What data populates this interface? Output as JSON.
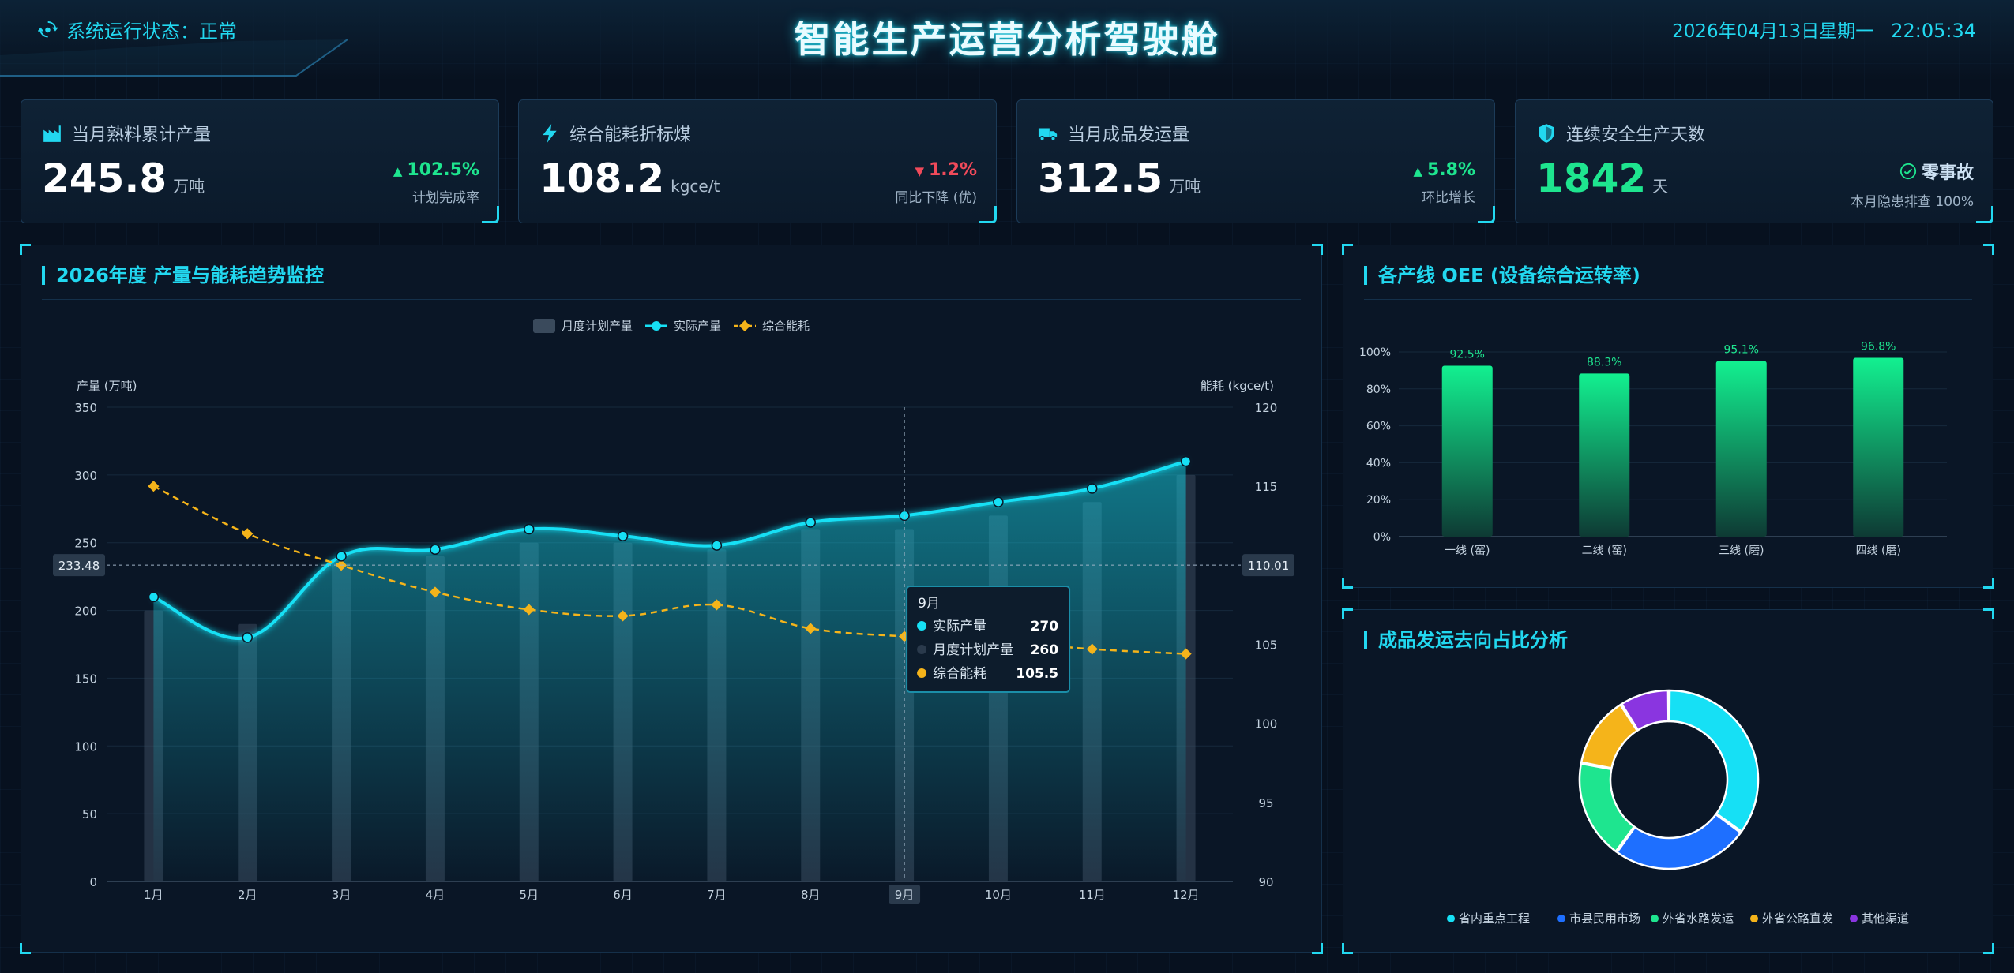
{
  "header": {
    "status_text": "系统运行状态：正常",
    "title": "智能生产运营分析驾驶舱",
    "date": "2026年04月13日星期一",
    "time": "22:05:34"
  },
  "kpis": [
    {
      "icon": "factory-icon",
      "label": "当月熟料累计产量",
      "value": "245.8",
      "unit": "万吨",
      "change": "102.5%",
      "direction": "up",
      "sub": "计划完成率"
    },
    {
      "icon": "lightning-icon",
      "label": "综合能耗折标煤",
      "value": "108.2",
      "unit": "kgce/t",
      "change": "1.2%",
      "direction": "down",
      "sub": "同比下降 (优)"
    },
    {
      "icon": "truck-icon",
      "label": "当月成品发运量",
      "value": "312.5",
      "unit": "万吨",
      "change": "5.8%",
      "direction": "up",
      "sub": "环比增长"
    },
    {
      "icon": "shield-icon",
      "label": "连续安全生产天数",
      "value": "1842",
      "unit": "天",
      "change": "零事故",
      "direction": "check",
      "sub": "本月隐患排查 100%"
    }
  ],
  "colors": {
    "accent": "#22d8f0",
    "green": "#1ee58f",
    "red": "#f04a5a",
    "yellow": "#f5b41a",
    "blue": "#1e6fff",
    "purple": "#8a35e0"
  },
  "trend_panel": {
    "title": "2026年度 产量与能耗趋势监控",
    "crosshair": {
      "x_label": "9月",
      "y_left": "233.48",
      "y_right": "110.01"
    },
    "tooltip": {
      "title": "9月",
      "rows": [
        {
          "label": "实际产量",
          "value": "270"
        },
        {
          "label": "月度计划产量",
          "value": "260"
        },
        {
          "label": "综合能耗",
          "value": "105.5"
        }
      ]
    }
  },
  "oee_panel": {
    "title": "各产线 OEE (设备综合运转率)"
  },
  "ship_panel": {
    "title": "成品发运去向占比分析"
  },
  "chart_data": [
    {
      "type": "bar",
      "title": "2026年度 产量与能耗趋势监控",
      "categories": [
        "1月",
        "2月",
        "3月",
        "4月",
        "5月",
        "6月",
        "7月",
        "8月",
        "9月",
        "10月",
        "11月",
        "12月"
      ],
      "series": [
        {
          "name": "月度计划产量",
          "type": "bar",
          "axis": "left",
          "values": [
            200,
            190,
            235,
            240,
            250,
            250,
            245,
            260,
            260,
            270,
            280,
            300
          ]
        },
        {
          "name": "实际产量",
          "type": "line",
          "axis": "left",
          "values": [
            210,
            180,
            240,
            245,
            260,
            255,
            248,
            265,
            270,
            280,
            290,
            310
          ]
        },
        {
          "name": "综合能耗",
          "type": "line",
          "axis": "right",
          "values": [
            115,
            112,
            110,
            108.3,
            107.2,
            106.8,
            107.5,
            106,
            105.5,
            105.2,
            104.7,
            104.4
          ]
        }
      ],
      "ylabel": "产量 (万吨)",
      "ylabel_right": "能耗 (kgce/t)",
      "ylim": [
        0,
        350
      ],
      "yticks": [
        0,
        50,
        100,
        150,
        200,
        250,
        300,
        350
      ],
      "ylim_right": [
        90,
        120
      ],
      "yticks_right": [
        90,
        95,
        100,
        105,
        110,
        115,
        120
      ],
      "legend": [
        "月度计划产量",
        "实际产量",
        "综合能耗"
      ],
      "legend_position": "top-center",
      "grid": true
    },
    {
      "type": "bar",
      "title": "各产线 OEE (设备综合运转率)",
      "categories": [
        "一线 (窑)",
        "二线 (窑)",
        "三线 (磨)",
        "四线 (磨)"
      ],
      "values": [
        92.5,
        88.3,
        95.1,
        96.8
      ],
      "data_labels": [
        "92.5%",
        "88.3%",
        "95.1%",
        "96.8%"
      ],
      "ylim": [
        0,
        100
      ],
      "yticks": [
        "0%",
        "20%",
        "40%",
        "60%",
        "80%",
        "100%"
      ],
      "grid": true
    },
    {
      "type": "pie",
      "title": "成品发运去向占比分析",
      "labels": [
        "省内重点工程",
        "市县民用市场",
        "外省水路发运",
        "外省公路直发",
        "其他渠道"
      ],
      "values": [
        35,
        25,
        18,
        13,
        9
      ],
      "colors": [
        "#16e0f5",
        "#1e6fff",
        "#1ee58f",
        "#f5b41a",
        "#8a35e0"
      ],
      "legend_position": "bottom"
    }
  ]
}
